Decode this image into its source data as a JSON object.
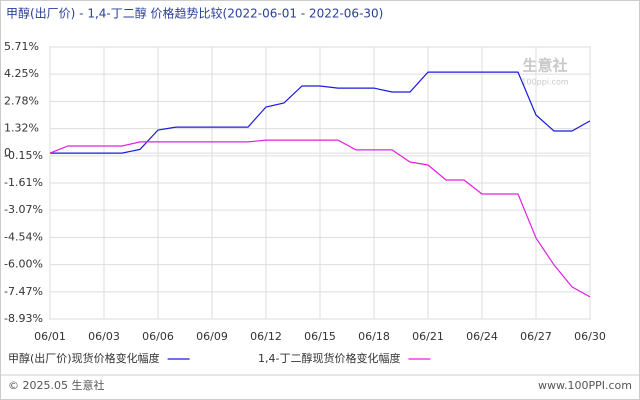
{
  "chart_data": {
    "type": "line",
    "title": "甲醇(出厂价) - 1,4-丁二醇 价格趋势比较(2022-06-01 - 2022-06-30)",
    "watermark": "生意社",
    "watermark_sub": "100ppi.com",
    "footer_left": "© 2025.05 生意社",
    "footer_right": "www.100PPI.com",
    "categories": [
      "06/01",
      null,
      null,
      "06/03",
      null,
      null,
      "06/06",
      null,
      null,
      "06/09",
      null,
      null,
      "06/12",
      null,
      null,
      "06/15",
      null,
      null,
      "06/18",
      null,
      null,
      "06/21",
      null,
      null,
      "06/24",
      null,
      null,
      "06/27",
      null,
      null,
      "06/30"
    ],
    "series": [
      {
        "name": "甲醇(出厂价)现货价格变化幅度",
        "color": "#1a1adb",
        "values": [
          0,
          0,
          0,
          0,
          0,
          0.2,
          1.24,
          1.4,
          1.4,
          1.4,
          1.4,
          1.4,
          2.48,
          2.7,
          3.61,
          3.61,
          3.5,
          3.5,
          3.5,
          3.29,
          3.29,
          4.36,
          4.36,
          4.36,
          4.36,
          4.36,
          4.36,
          2.05,
          1.19,
          1.19,
          1.73
        ]
      },
      {
        "name": "1,4-丁二醇现货价格变化幅度",
        "color": "#e020e0",
        "values": [
          0,
          0.38,
          0.38,
          0.38,
          0.38,
          0.6,
          0.6,
          0.6,
          0.6,
          0.6,
          0.6,
          0.6,
          0.7,
          0.7,
          0.7,
          0.7,
          0.7,
          0.17,
          0.17,
          0.17,
          -0.48,
          -0.64,
          -1.45,
          -1.45,
          -2.2,
          -2.2,
          -2.2,
          -4.57,
          -6.02,
          -7.2,
          -7.74
        ]
      }
    ],
    "ylim": [
      -8.93,
      5.71
    ],
    "yticks": [
      {
        "value": 5.71,
        "label": "5.71%"
      },
      {
        "value": 4.25,
        "label": "4.25%"
      },
      {
        "value": 2.78,
        "label": "2.78%"
      },
      {
        "value": 1.32,
        "label": "1.32%"
      },
      0,
      {
        "value": -0.15,
        "label": "-0.15%"
      },
      {
        "value": -1.61,
        "label": "-1.61%"
      },
      {
        "value": -3.07,
        "label": "-3.07%"
      },
      {
        "value": -4.54,
        "label": "-4.54%"
      },
      {
        "value": -6.0,
        "label": "-6.00%"
      },
      {
        "value": -7.47,
        "label": "-7.47%"
      },
      {
        "value": -8.93,
        "label": "-8.93%"
      }
    ],
    "grid": true
  }
}
